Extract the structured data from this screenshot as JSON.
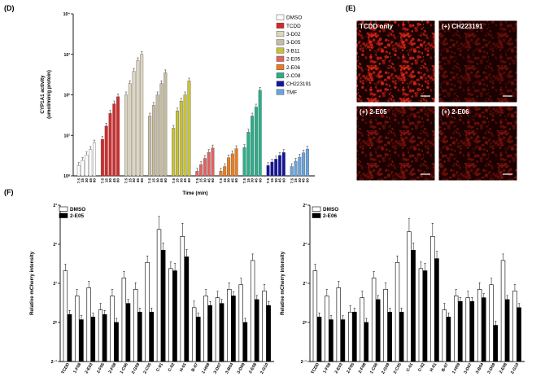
{
  "panels": {
    "D": "(D)",
    "E": "(E)",
    "F": "(F)"
  },
  "chart_data": [
    {
      "type": "bar",
      "id": "D",
      "ylabel": "CYP1A1 activity\n(umol/min/g protein)",
      "xlabel": "Time (min)",
      "yscale": "log10",
      "ylim": [
        1,
        10000
      ],
      "yticks": [
        "10⁰",
        "10¹",
        "10²",
        "10³",
        "10⁴"
      ],
      "times": [
        "7.5",
        "15",
        "30",
        "45",
        "60"
      ],
      "groups": [
        {
          "name": "DMSO",
          "color": "#ffffff",
          "values": [
            1.8,
            2.4,
            3.3,
            4.5,
            6.5
          ]
        },
        {
          "name": "TCDD",
          "color": "#d42a2a",
          "values": [
            8,
            17,
            35,
            60,
            90
          ]
        },
        {
          "name": "3-D02",
          "color": "#ddd6bf",
          "values": [
            100,
            190,
            380,
            700,
            1000
          ]
        },
        {
          "name": "3-D05",
          "color": "#c6bca0",
          "values": [
            30,
            55,
            100,
            190,
            350
          ]
        },
        {
          "name": "3-B11",
          "color": "#c8c236",
          "values": [
            15,
            40,
            70,
            100,
            220
          ]
        },
        {
          "name": "2-E05",
          "color": "#e06262",
          "values": [
            1.3,
            1.9,
            2.7,
            3.8,
            4.9
          ]
        },
        {
          "name": "2-E06",
          "color": "#ea7d20",
          "values": [
            1.3,
            1.7,
            2.8,
            3.5,
            4.7
          ]
        },
        {
          "name": "2-C08",
          "color": "#28b08a",
          "values": [
            5,
            12,
            30,
            50,
            130
          ]
        },
        {
          "name": "CH223191",
          "color": "#1414a0",
          "values": [
            1.8,
            2.2,
            2.6,
            3.2,
            3.8
          ]
        },
        {
          "name": "TMF",
          "color": "#6aa4de",
          "values": [
            1.7,
            2.3,
            2.9,
            3.7,
            4.6
          ]
        }
      ]
    },
    {
      "type": "bar",
      "id": "F-left",
      "ylabel": "Relative mCherry intensity",
      "yscale": "log2",
      "ylim": [
        0.5,
        8
      ],
      "yticks": [
        "2⁻¹",
        "2⁰",
        "2¹",
        "2²",
        "2³"
      ],
      "legend": [
        "DMSO",
        "2-E05"
      ],
      "categories": [
        "TCDD",
        "1-F08",
        "2-E03",
        "2-F05",
        "2-F08",
        "1-C06",
        "2-G09",
        "2-C05",
        "C-01",
        "C-02",
        "H-01",
        "B-07",
        "1-H09",
        "3-D07",
        "3-B04",
        "3-D09",
        "2-E08",
        "2-G10"
      ],
      "series": [
        {
          "name": "DMSO",
          "values": [
            2.5,
            1.6,
            1.85,
            1.25,
            1.6,
            2.2,
            1.8,
            2.9,
            5.2,
            2.6,
            4.6,
            1.3,
            1.6,
            1.55,
            1.8,
            1.95,
            3.0,
            1.75
          ]
        },
        {
          "name": "2-E05",
          "values": [
            1.15,
            1.05,
            1.1,
            1.15,
            1.0,
            1.4,
            1.2,
            1.2,
            3.6,
            2.5,
            3.2,
            1.1,
            1.35,
            1.4,
            1.6,
            1.0,
            1.5,
            1.35
          ]
        }
      ]
    },
    {
      "type": "bar",
      "id": "F-right",
      "ylabel": "Relative mCherry intensity",
      "yscale": "log2",
      "ylim": [
        0.5,
        8
      ],
      "yticks": [
        "2⁻¹",
        "2⁰",
        "2¹",
        "2²",
        "2³"
      ],
      "legend": [
        "DMSO",
        "2-E06"
      ],
      "categories": [
        "TCDD",
        "1-F08",
        "2-E03",
        "2-F05",
        "2-F08",
        "1-C06",
        "2-G09",
        "2-C05",
        "C-01",
        "C-02",
        "H-01",
        "B-07",
        "1-H09",
        "3-D07",
        "3-B04",
        "3-D09",
        "2-E08",
        "2-G10"
      ],
      "series": [
        {
          "name": "DMSO",
          "values": [
            2.5,
            1.6,
            1.85,
            1.2,
            1.55,
            2.2,
            1.8,
            2.9,
            5.0,
            2.6,
            4.6,
            1.25,
            1.6,
            1.55,
            1.8,
            1.95,
            3.0,
            1.75
          ]
        },
        {
          "name": "2-E06",
          "values": [
            1.1,
            1.05,
            1.05,
            1.2,
            1.0,
            1.5,
            1.2,
            1.2,
            3.6,
            2.5,
            3.1,
            1.1,
            1.45,
            1.45,
            1.55,
            0.95,
            1.5,
            1.3
          ]
        }
      ]
    }
  ],
  "micrographs": [
    {
      "label": "TCDD only",
      "intensity": 0.85
    },
    {
      "label": "(+) CH223191",
      "intensity": 0.35
    },
    {
      "label": "(+) 2-E05",
      "intensity": 0.45
    },
    {
      "label": "(+) 2-E06",
      "intensity": 0.42
    }
  ]
}
